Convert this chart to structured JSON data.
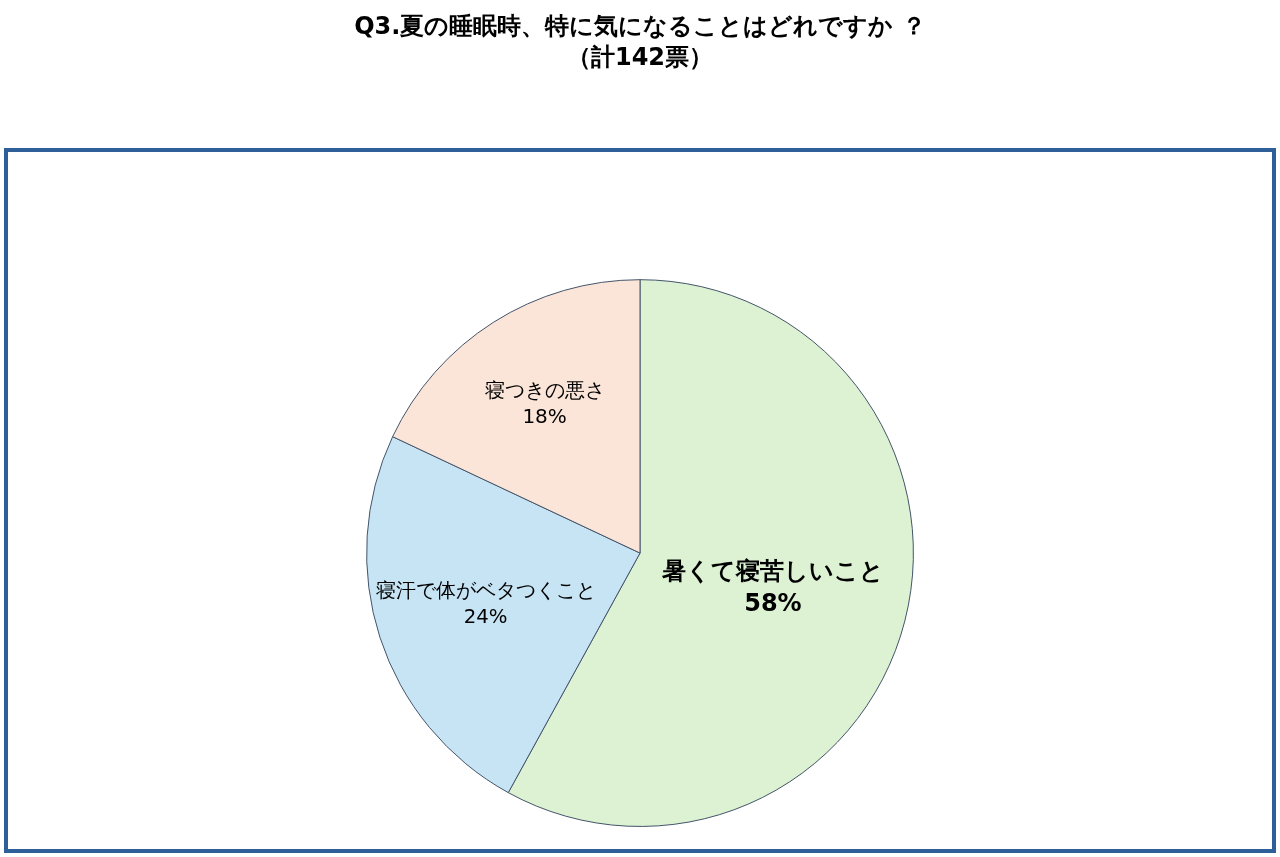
{
  "chart_data": {
    "type": "pie",
    "title": "Q3.夏の睡眠時、特に気になることはどれですか ？",
    "subtitle": "（計142票）",
    "categories": [
      "暑くて寝苦しいこと",
      "寝汗で体がベタつくこと",
      "寝つきの悪さ"
    ],
    "values": [
      58,
      24,
      18
    ],
    "value_labels": [
      "58%",
      "24%",
      "18%"
    ],
    "colors": [
      "#dcf2d3",
      "#c6e4f4",
      "#fbe5d9"
    ],
    "legend": false
  }
}
